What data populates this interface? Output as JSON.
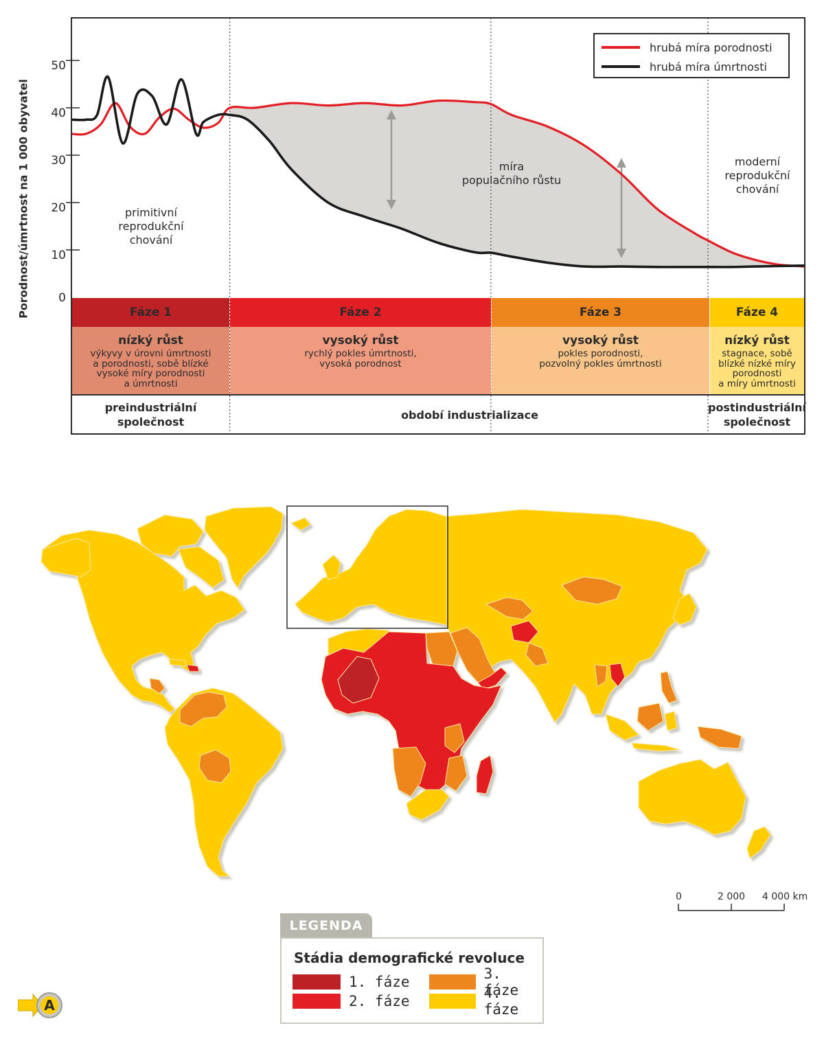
{
  "chart": {
    "ylabel": "Porodnost/úmrtnost na 1 000 obyvatel",
    "y_ticks": [
      "0",
      "10",
      "20",
      "30",
      "40",
      "50"
    ],
    "legend": {
      "birth": "hrubá míra porodnosti",
      "death": "hrubá míra úmrtnosti"
    },
    "annotations": {
      "primitive": [
        "primitivní",
        "reprodukční",
        "chování"
      ],
      "growth": [
        "míra",
        "populačního růstu"
      ],
      "modern": [
        "moderní",
        "reprodukční",
        "chování"
      ]
    },
    "phases": [
      {
        "name": "Fáze 1",
        "title": "nízký růst",
        "desc": [
          "výkyvy v úrovni úmrtnosti",
          "a porodnosti, sobě blízké",
          "vysoké míry porodnosti",
          "a úmrtnosti"
        ],
        "head_color": "#bd2025",
        "body_color": "#e08a70"
      },
      {
        "name": "Fáze 2",
        "title": "vysoký růst",
        "desc": [
          "rychlý pokles úmrtnosti,",
          "vysoká porodnost"
        ],
        "head_color": "#e31e24",
        "body_color": "#f09b80"
      },
      {
        "name": "Fáze 3",
        "title": "vysoký růst",
        "desc": [
          "pokles porodnosti,",
          "pozvolný pokles úmrtnosti"
        ],
        "head_color": "#ee861e",
        "body_color": "#f8c48a"
      },
      {
        "name": "Fáze 4",
        "title": "nízký růst",
        "desc": [
          "stagnace, sobě",
          "blízké nízké míry",
          "porodnosti",
          "a míry úmrtnosti"
        ],
        "head_color": "#ffcc00",
        "body_color": "#ffe07a"
      }
    ],
    "society": {
      "pre": [
        "preindustriální",
        "společnost"
      ],
      "ind": "období industrializace",
      "post": [
        "postindustriální",
        "společnost"
      ]
    },
    "colors": {
      "birth": "#e31e24",
      "death": "#1a1a1a",
      "fill": "#d9d8d4",
      "frame": "#2b2b2b"
    }
  },
  "chart_data": {
    "type": "line",
    "ylabel": "Porodnost/úmrtnost na 1 000 obyvatel",
    "ylim": [
      0,
      55
    ],
    "legend_position": "top-right",
    "phase_boundaries": [
      0,
      0.216,
      0.572,
      0.868,
      1.0
    ],
    "series": [
      {
        "name": "hrubá míra porodnosti",
        "x": [
          0,
          0.02,
          0.04,
          0.06,
          0.08,
          0.1,
          0.12,
          0.14,
          0.16,
          0.18,
          0.2,
          0.216,
          0.25,
          0.3,
          0.35,
          0.4,
          0.45,
          0.5,
          0.55,
          0.572,
          0.6,
          0.65,
          0.7,
          0.75,
          0.8,
          0.85,
          0.868,
          0.9,
          0.93,
          0.96,
          0.98,
          1.0
        ],
        "values": [
          34.5,
          34.5,
          36.5,
          41,
          36,
          34.5,
          38,
          39.8,
          37.5,
          35.8,
          36.8,
          40,
          40,
          41,
          40.5,
          41,
          40.5,
          41.5,
          41.2,
          40.8,
          38.5,
          36,
          32,
          26,
          18.5,
          13.5,
          12,
          9.5,
          8,
          7,
          6.7,
          6.5
        ]
      },
      {
        "name": "hrubá míra úmrtnosti",
        "x": [
          0,
          0.02,
          0.035,
          0.05,
          0.07,
          0.09,
          0.11,
          0.13,
          0.15,
          0.17,
          0.18,
          0.2,
          0.216,
          0.24,
          0.27,
          0.3,
          0.35,
          0.4,
          0.45,
          0.5,
          0.55,
          0.572,
          0.6,
          0.65,
          0.7,
          0.75,
          0.8,
          0.85,
          0.868,
          0.9,
          0.93,
          0.96,
          1.0
        ],
        "values": [
          37.5,
          37.5,
          38.5,
          46.5,
          32.5,
          43,
          42.5,
          36.5,
          46,
          34.5,
          37,
          38.5,
          38.5,
          37.5,
          33,
          27,
          20,
          17,
          14.5,
          11.5,
          9.5,
          9.4,
          8.6,
          7.3,
          6.5,
          6.5,
          6.4,
          6.4,
          6.4,
          6.4,
          6.5,
          6.6,
          6.7
        ]
      }
    ]
  },
  "map": {
    "colors": {
      "p1": "#bd2025",
      "p2": "#e31e24",
      "p3": "#ee861e",
      "p4": "#ffcc00",
      "ocean": "#ffffff",
      "border": "#fbe7a0",
      "shadow": "#d8d7d0"
    },
    "scale": {
      "l0": "0",
      "l1": "2 000",
      "l2": "4 000 km"
    },
    "legend": {
      "tab": "LEGENDA",
      "title": "Stádia demografické revoluce",
      "items": [
        "1. fáze",
        "2. fáze",
        "3. fáze",
        "4. fáze"
      ]
    }
  }
}
